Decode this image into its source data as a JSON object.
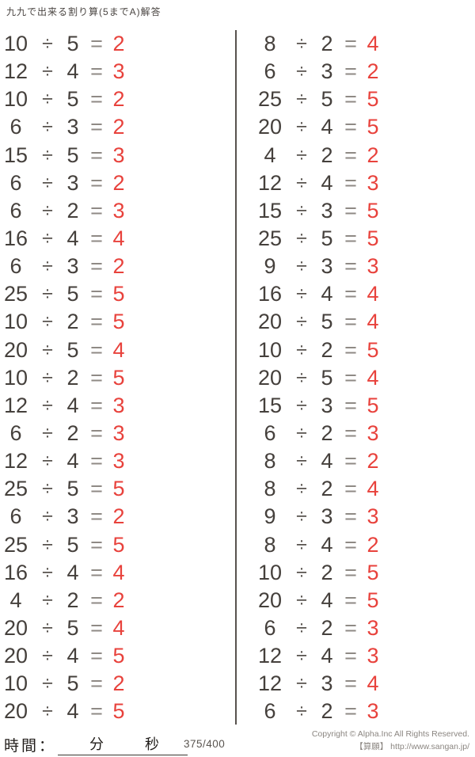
{
  "title": "九九で出来る割り算(5までA)解答",
  "operators": {
    "divide": "÷",
    "equals": "="
  },
  "colors": {
    "ink": "#45403c",
    "equals_gray": "#8f8a85",
    "answer_red": "#e8423c",
    "divider": "#58524e",
    "copyright_gray": "#8b8681"
  },
  "columns": {
    "left": [
      {
        "dividend": "10",
        "divisor": "5",
        "answer": "2"
      },
      {
        "dividend": "12",
        "divisor": "4",
        "answer": "3"
      },
      {
        "dividend": "10",
        "divisor": "5",
        "answer": "2"
      },
      {
        "dividend": "6",
        "divisor": "3",
        "answer": "2"
      },
      {
        "dividend": "15",
        "divisor": "5",
        "answer": "3"
      },
      {
        "dividend": "6",
        "divisor": "3",
        "answer": "2"
      },
      {
        "dividend": "6",
        "divisor": "2",
        "answer": "3"
      },
      {
        "dividend": "16",
        "divisor": "4",
        "answer": "4"
      },
      {
        "dividend": "6",
        "divisor": "3",
        "answer": "2"
      },
      {
        "dividend": "25",
        "divisor": "5",
        "answer": "5"
      },
      {
        "dividend": "10",
        "divisor": "2",
        "answer": "5"
      },
      {
        "dividend": "20",
        "divisor": "5",
        "answer": "4"
      },
      {
        "dividend": "10",
        "divisor": "2",
        "answer": "5"
      },
      {
        "dividend": "12",
        "divisor": "4",
        "answer": "3"
      },
      {
        "dividend": "6",
        "divisor": "2",
        "answer": "3"
      },
      {
        "dividend": "12",
        "divisor": "4",
        "answer": "3"
      },
      {
        "dividend": "25",
        "divisor": "5",
        "answer": "5"
      },
      {
        "dividend": "6",
        "divisor": "3",
        "answer": "2"
      },
      {
        "dividend": "25",
        "divisor": "5",
        "answer": "5"
      },
      {
        "dividend": "16",
        "divisor": "4",
        "answer": "4"
      },
      {
        "dividend": "4",
        "divisor": "2",
        "answer": "2"
      },
      {
        "dividend": "20",
        "divisor": "5",
        "answer": "4"
      },
      {
        "dividend": "20",
        "divisor": "4",
        "answer": "5"
      },
      {
        "dividend": "10",
        "divisor": "5",
        "answer": "2"
      },
      {
        "dividend": "20",
        "divisor": "4",
        "answer": "5"
      }
    ],
    "right": [
      {
        "dividend": "8",
        "divisor": "2",
        "answer": "4"
      },
      {
        "dividend": "6",
        "divisor": "3",
        "answer": "2"
      },
      {
        "dividend": "25",
        "divisor": "5",
        "answer": "5"
      },
      {
        "dividend": "20",
        "divisor": "4",
        "answer": "5"
      },
      {
        "dividend": "4",
        "divisor": "2",
        "answer": "2"
      },
      {
        "dividend": "12",
        "divisor": "4",
        "answer": "3"
      },
      {
        "dividend": "15",
        "divisor": "3",
        "answer": "5"
      },
      {
        "dividend": "25",
        "divisor": "5",
        "answer": "5"
      },
      {
        "dividend": "9",
        "divisor": "3",
        "answer": "3"
      },
      {
        "dividend": "16",
        "divisor": "4",
        "answer": "4"
      },
      {
        "dividend": "20",
        "divisor": "5",
        "answer": "4"
      },
      {
        "dividend": "10",
        "divisor": "2",
        "answer": "5"
      },
      {
        "dividend": "20",
        "divisor": "5",
        "answer": "4"
      },
      {
        "dividend": "15",
        "divisor": "3",
        "answer": "5"
      },
      {
        "dividend": "6",
        "divisor": "2",
        "answer": "3"
      },
      {
        "dividend": "8",
        "divisor": "4",
        "answer": "2"
      },
      {
        "dividend": "8",
        "divisor": "2",
        "answer": "4"
      },
      {
        "dividend": "9",
        "divisor": "3",
        "answer": "3"
      },
      {
        "dividend": "8",
        "divisor": "4",
        "answer": "2"
      },
      {
        "dividend": "10",
        "divisor": "2",
        "answer": "5"
      },
      {
        "dividend": "20",
        "divisor": "4",
        "answer": "5"
      },
      {
        "dividend": "6",
        "divisor": "2",
        "answer": "3"
      },
      {
        "dividend": "12",
        "divisor": "4",
        "answer": "3"
      },
      {
        "dividend": "12",
        "divisor": "3",
        "answer": "4"
      },
      {
        "dividend": "6",
        "divisor": "2",
        "answer": "3"
      }
    ]
  },
  "footer": {
    "time_label": "時間：",
    "minutes_label": "分",
    "seconds_label": "秒",
    "score": "375/400",
    "copyright_line1": "Copyright © Alpha.Inc All Rights Reserved.",
    "copyright_line2": "【算願】 http://www.sangan.jp/"
  }
}
